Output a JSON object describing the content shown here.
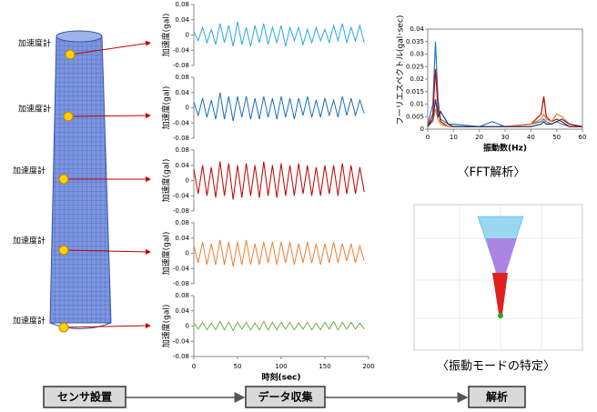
{
  "sensors": {
    "label": "加速度計",
    "count_labels": [
      "加速度計",
      "加速度計",
      "加速度計",
      "加速度計",
      "加速度計"
    ]
  },
  "chart_data": [
    {
      "type": "line",
      "x_label": "時刻(sec)",
      "y_label": "加速度(gal)",
      "x": [
        0,
        5,
        10,
        15,
        20,
        25,
        30,
        35,
        40,
        45,
        50,
        55,
        60,
        65,
        70,
        75,
        80,
        85,
        90,
        95,
        100,
        105,
        110,
        115,
        120,
        125,
        130,
        135,
        140,
        145,
        150,
        155,
        160,
        165,
        170,
        175,
        180,
        185,
        190,
        195
      ],
      "xlim": [
        0,
        200
      ],
      "xticks": [
        0,
        50,
        100,
        150,
        200
      ],
      "ylim": [
        -0.08,
        0.08
      ],
      "yticks": [
        0.08,
        0.04,
        0,
        -0.04,
        -0.08
      ],
      "series": [
        {
          "color": "#29a8e0",
          "values": [
            0.01,
            -0.015,
            0.02,
            -0.02,
            0.015,
            -0.025,
            0.03,
            -0.02,
            0.025,
            -0.03,
            0.035,
            -0.025,
            0.02,
            -0.03,
            0.025,
            -0.02,
            0.03,
            -0.025,
            0.02,
            -0.02,
            0.025,
            -0.03,
            0.02,
            -0.015,
            0.02,
            -0.025,
            0.015,
            -0.02,
            0.02,
            -0.015,
            0.015,
            -0.02,
            0.025,
            -0.015,
            0.03,
            -0.02,
            0.02,
            -0.015,
            0.025,
            -0.02
          ]
        },
        {
          "color": "#1a6fb8",
          "values": [
            0.015,
            -0.02,
            0.025,
            -0.025,
            0.02,
            -0.03,
            0.04,
            -0.03,
            0.03,
            -0.035,
            0.03,
            -0.025,
            0.03,
            -0.03,
            0.025,
            -0.03,
            0.03,
            -0.025,
            0.025,
            -0.03,
            0.03,
            -0.025,
            0.025,
            -0.03,
            0.025,
            -0.02,
            0.03,
            -0.025,
            0.02,
            -0.025,
            0.025,
            -0.02,
            0.02,
            -0.025,
            0.03,
            -0.02,
            0.025,
            -0.02,
            0.02,
            -0.015
          ]
        },
        {
          "color": "#c00000",
          "values": [
            0.03,
            -0.035,
            0.04,
            -0.04,
            0.035,
            -0.045,
            0.05,
            -0.04,
            0.045,
            -0.05,
            0.04,
            -0.045,
            0.045,
            -0.04,
            0.04,
            -0.045,
            0.05,
            -0.04,
            0.04,
            -0.045,
            0.045,
            -0.04,
            0.04,
            -0.04,
            0.045,
            -0.035,
            0.04,
            -0.04,
            0.035,
            -0.04,
            0.04,
            -0.035,
            0.04,
            -0.04,
            0.045,
            -0.035,
            0.04,
            -0.035,
            0.035,
            -0.03
          ]
        },
        {
          "color": "#ed7d31",
          "values": [
            0.02,
            -0.025,
            0.03,
            -0.03,
            0.025,
            -0.03,
            0.035,
            -0.03,
            0.03,
            -0.035,
            0.03,
            -0.03,
            0.035,
            -0.03,
            0.025,
            -0.03,
            0.03,
            -0.025,
            0.03,
            -0.03,
            0.03,
            -0.025,
            0.03,
            -0.03,
            0.025,
            -0.025,
            0.03,
            -0.025,
            0.025,
            -0.03,
            0.025,
            -0.025,
            0.03,
            -0.025,
            0.025,
            -0.02,
            0.025,
            -0.025,
            0.02,
            -0.02
          ]
        },
        {
          "color": "#70ad47",
          "values": [
            0.008,
            -0.008,
            0.01,
            -0.01,
            0.008,
            -0.01,
            0.012,
            -0.01,
            0.01,
            -0.012,
            0.01,
            -0.008,
            0.01,
            -0.01,
            0.008,
            -0.01,
            0.012,
            -0.01,
            0.01,
            -0.01,
            0.01,
            -0.008,
            0.01,
            -0.01,
            0.008,
            -0.008,
            0.01,
            -0.01,
            0.008,
            -0.01,
            0.01,
            -0.008,
            0.012,
            -0.01,
            0.01,
            -0.008,
            0.01,
            -0.008,
            0.008,
            -0.008
          ]
        }
      ]
    },
    {
      "type": "line",
      "y_label": "フーリエスペクトル(gal･sec)",
      "x_label": "振動数(Hz)",
      "x": [
        0,
        2,
        3,
        4,
        5,
        8,
        10,
        20,
        25,
        30,
        40,
        44,
        45,
        46,
        48,
        50,
        52,
        55,
        60
      ],
      "xlim": [
        0,
        60
      ],
      "xticks": [
        0,
        10,
        20,
        30,
        40,
        50,
        60
      ],
      "ylim": [
        0,
        0.04
      ],
      "yticks": [
        0,
        0.005,
        0.01,
        0.015,
        0.02,
        0.025,
        0.03,
        0.035,
        0.04
      ],
      "series": [
        {
          "color": "#2e75b6",
          "values": [
            0.002,
            0.01,
            0.035,
            0.012,
            0.004,
            0.002,
            0.002,
            0.001,
            0.003,
            0.001,
            0.002,
            0.003,
            0.004,
            0.003,
            0.002,
            0.003,
            0.002,
            0.001,
            0.001
          ]
        },
        {
          "color": "#c00000",
          "values": [
            0.001,
            0.006,
            0.024,
            0.008,
            0.003,
            0.001,
            0.001,
            0.001,
            0.001,
            0.001,
            0.002,
            0.006,
            0.013,
            0.005,
            0.003,
            0.004,
            0.003,
            0.001,
            0.001
          ]
        },
        {
          "color": "#ed7d31",
          "values": [
            0.001,
            0.003,
            0.008,
            0.004,
            0.002,
            0.001,
            0.001,
            0.001,
            0.001,
            0.001,
            0.002,
            0.004,
            0.006,
            0.004,
            0.003,
            0.006,
            0.005,
            0.002,
            0.001
          ]
        },
        {
          "color": "#1f3864",
          "values": [
            0.001,
            0.004,
            0.012,
            0.005,
            0.007,
            0.002,
            0.001,
            0.001,
            0.001,
            0.001,
            0.001,
            0.002,
            0.003,
            0.002,
            0.002,
            0.003,
            0.004,
            0.002,
            0.001
          ]
        }
      ]
    }
  ],
  "captions": {
    "fft": "〈FFT解析〉",
    "mode": "〈振動モードの特定〉"
  },
  "flow": [
    "センサ設置",
    "データ収集",
    "解析"
  ]
}
